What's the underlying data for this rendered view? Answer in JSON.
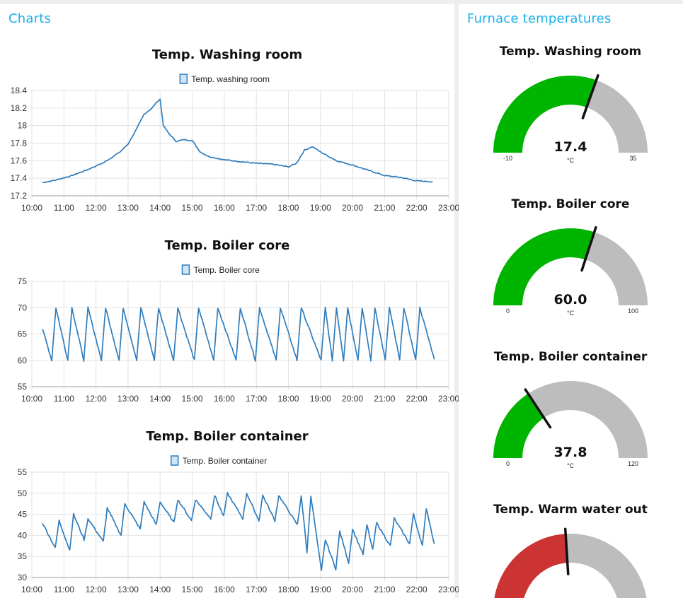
{
  "left_panel": {
    "title": "Charts"
  },
  "right_panel": {
    "title": "Furnace temperatures"
  },
  "colors": {
    "series": "#2f7dbd",
    "gauge_fill": "#00b500",
    "gauge_warm": "#cc3333",
    "gauge_track": "#bdbdbd",
    "header": "#1ab0e8"
  },
  "chart_data": [
    {
      "type": "line",
      "title": "Temp. Washing room",
      "xlabel": "",
      "ylabel": "",
      "x_ticks": [
        "10:00",
        "11:00",
        "12:00",
        "13:00",
        "14:00",
        "15:00",
        "16:00",
        "17:00",
        "18:00",
        "19:00",
        "20:00",
        "21:00",
        "22:00",
        "23:00"
      ],
      "y_ticks": [
        "17.2",
        "17.4",
        "17.6",
        "17.8",
        "18",
        "18.2",
        "18.4"
      ],
      "xlim": [
        10.0,
        23.0
      ],
      "ylim": [
        17.2,
        18.4
      ],
      "grid": true,
      "legend": "top-center",
      "series": [
        {
          "name": "Temp. washing room",
          "x": [
            10.33,
            10.75,
            11.25,
            11.75,
            12.25,
            12.75,
            13.0,
            13.25,
            13.5,
            13.75,
            13.9,
            14.0,
            14.1,
            14.25,
            14.5,
            14.75,
            15.0,
            15.25,
            15.5,
            15.75,
            16.0,
            16.5,
            17.0,
            17.5,
            18.0,
            18.25,
            18.5,
            18.75,
            19.0,
            19.25,
            19.5,
            20.0,
            20.5,
            21.0,
            21.5,
            22.0,
            22.5
          ],
          "y": [
            17.35,
            17.38,
            17.43,
            17.5,
            17.58,
            17.7,
            17.79,
            17.95,
            18.13,
            18.2,
            18.27,
            18.3,
            18.0,
            17.92,
            17.82,
            17.84,
            17.83,
            17.7,
            17.65,
            17.63,
            17.61,
            17.59,
            17.57,
            17.56,
            17.53,
            17.57,
            17.72,
            17.76,
            17.7,
            17.65,
            17.6,
            17.55,
            17.49,
            17.43,
            17.41,
            17.37,
            17.36
          ]
        }
      ]
    },
    {
      "type": "line",
      "title": "Temp. Boiler core",
      "xlabel": "",
      "ylabel": "",
      "x_ticks": [
        "10:00",
        "11:00",
        "12:00",
        "13:00",
        "14:00",
        "15:00",
        "16:00",
        "17:00",
        "18:00",
        "19:00",
        "20:00",
        "21:00",
        "22:00",
        "23:00"
      ],
      "y_ticks": [
        "55",
        "60",
        "65",
        "70",
        "75"
      ],
      "xlim": [
        10.0,
        23.0
      ],
      "ylim": [
        55,
        75
      ],
      "grid": true,
      "legend": "top-center",
      "series": [
        {
          "name": "Temp. Boiler core",
          "peaks": [
            10.75,
            11.25,
            11.75,
            12.3,
            12.85,
            13.4,
            13.95,
            14.55,
            15.2,
            15.8,
            16.5,
            17.1,
            17.75,
            18.4,
            19.15,
            19.5,
            19.85,
            20.3,
            20.7,
            21.15,
            21.6,
            22.1
          ],
          "x": [
            10.33
          ],
          "y": [
            66.0
          ],
          "peak_value": 70,
          "trough_value": 60,
          "end": [
            22.55,
            60.2
          ]
        }
      ]
    },
    {
      "type": "line",
      "title": "Temp. Boiler container",
      "xlabel": "",
      "ylabel": "",
      "x_ticks": [
        "10:00",
        "11:00",
        "12:00",
        "13:00",
        "14:00",
        "15:00",
        "16:00",
        "17:00",
        "18:00",
        "19:00",
        "20:00",
        "21:00",
        "22:00",
        "23:00"
      ],
      "y_ticks": [
        "30",
        "35",
        "40",
        "45",
        "50",
        "55"
      ],
      "xlim": [
        10.0,
        23.0
      ],
      "ylim": [
        30,
        55
      ],
      "grid": true,
      "legend": "top-center",
      "series": [
        {
          "name": "Temp. Boiler container",
          "start": [
            10.33,
            43.0
          ],
          "cycles": [
            [
              10.85,
              43.5,
              37.0
            ],
            [
              11.3,
              45.0,
              36.5
            ],
            [
              11.75,
              44.0,
              39.0
            ],
            [
              12.35,
              46.5,
              38.5
            ],
            [
              12.9,
              47.5,
              40.0
            ],
            [
              13.5,
              48.0,
              41.5
            ],
            [
              14.0,
              48.0,
              42.5
            ],
            [
              14.55,
              48.5,
              43.0
            ],
            [
              15.1,
              48.5,
              43.5
            ],
            [
              15.7,
              49.5,
              44.0
            ],
            [
              16.1,
              50.0,
              44.5
            ],
            [
              16.7,
              50.0,
              44.0
            ],
            [
              17.2,
              49.5,
              43.5
            ],
            [
              17.7,
              49.5,
              43.5
            ],
            [
              18.4,
              49.5,
              42.5
            ],
            [
              18.7,
              49.5,
              36.0
            ],
            [
              19.15,
              39.0,
              31.5
            ],
            [
              19.6,
              41.0,
              32.0
            ],
            [
              20.0,
              41.5,
              33.5
            ],
            [
              20.45,
              42.5,
              35.5
            ],
            [
              20.75,
              43.0,
              36.5
            ],
            [
              21.3,
              44.0,
              37.5
            ],
            [
              21.9,
              45.0,
              38.0
            ],
            [
              22.3,
              46.5,
              37.5
            ]
          ],
          "end": [
            22.55,
            38.0
          ]
        }
      ]
    }
  ],
  "gauges": [
    {
      "title": "Temp. Washing room",
      "value": "17.4",
      "value_num": 17.4,
      "unit": "°C",
      "min": "-10",
      "max": "35",
      "min_num": -10,
      "max_num": 35,
      "color": "#00b500"
    },
    {
      "title": "Temp. Boiler core",
      "value": "60.0",
      "value_num": 60.0,
      "unit": "°C",
      "min": "0",
      "max": "100",
      "min_num": 0,
      "max_num": 100,
      "color": "#00b500"
    },
    {
      "title": "Temp. Boiler container",
      "value": "37.8",
      "value_num": 37.8,
      "unit": "°C",
      "min": "0",
      "max": "120",
      "min_num": 0,
      "max_num": 120,
      "color": "#00b500"
    },
    {
      "title": "Temp. Warm water out",
      "value_num": 0.48,
      "color": "#cc3333"
    }
  ]
}
